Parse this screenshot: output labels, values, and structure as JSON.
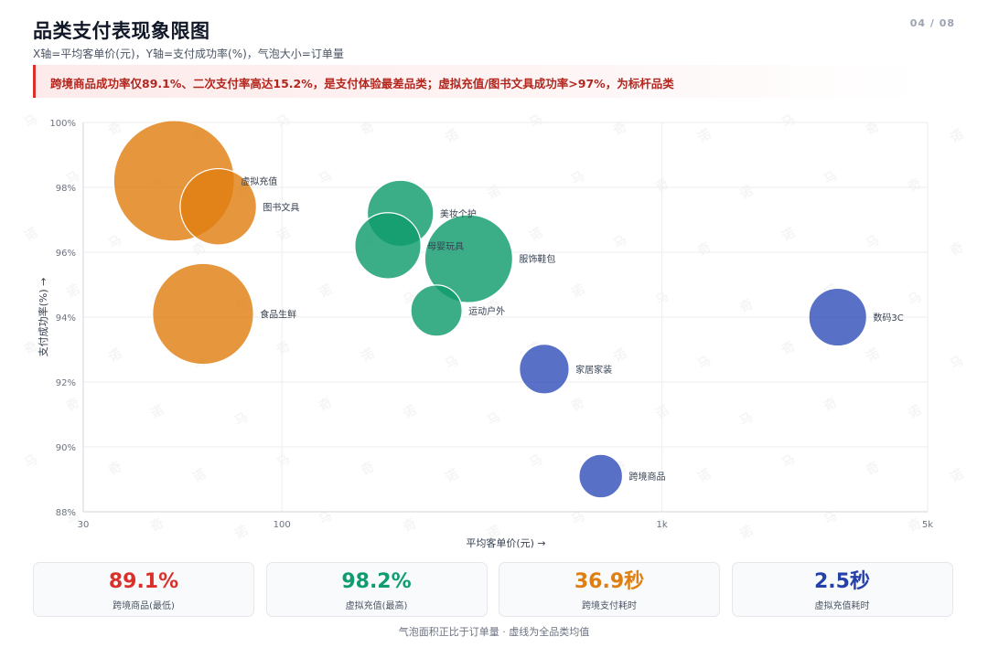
{
  "header": {
    "title": "品类支付表现象限图",
    "subtitle": "X轴=平均客单价(元)，Y轴=支付成功率(%)，气泡大小=订单量",
    "page_indicator": "04 / 08"
  },
  "insight": {
    "text": "跨境商品成功率仅89.1%、二次支付率高达15.2%，是支付体验最差品类；虚拟充值/图书文具成功率>97%，为标杆品类",
    "color": "#d9302b"
  },
  "watermark": {
    "glyphs": [
      "马",
      "奇",
      "诺"
    ]
  },
  "chart_data": {
    "type": "scatter",
    "xlabel": "平均客单价(元) →",
    "ylabel": "支付成功率(%) →",
    "x_scale": "log",
    "xlim": [
      30,
      5000
    ],
    "ylim": [
      88,
      100
    ],
    "x_ticks": [
      {
        "value": 30,
        "label": "30"
      },
      {
        "value": 100,
        "label": "100"
      },
      {
        "value": 1000,
        "label": "1k"
      },
      {
        "value": 5000,
        "label": "5k"
      }
    ],
    "y_ticks": [
      {
        "value": 88,
        "label": "88%"
      },
      {
        "value": 90,
        "label": "90%"
      },
      {
        "value": 92,
        "label": "92%"
      },
      {
        "value": 94,
        "label": "94%"
      },
      {
        "value": 96,
        "label": "96%"
      },
      {
        "value": 98,
        "label": "98%"
      },
      {
        "value": 100,
        "label": "100%"
      }
    ],
    "grid": true,
    "size_encoding": "order_volume_relative",
    "colors": {
      "low_price": "#e07f11",
      "mid_price": "#109c6e",
      "high_price": "#3451bb"
    },
    "points": [
      {
        "name": "虚拟充值",
        "x": 52,
        "y": 98.2,
        "size": 1.0,
        "group": "low_price"
      },
      {
        "name": "图书文具",
        "x": 68,
        "y": 97.4,
        "size": 0.4,
        "group": "low_price"
      },
      {
        "name": "食品生鲜",
        "x": 62,
        "y": 94.1,
        "size": 0.7,
        "group": "low_price"
      },
      {
        "name": "服饰鞋包",
        "x": 310,
        "y": 95.8,
        "size": 0.53,
        "group": "mid_price"
      },
      {
        "name": "美妆个护",
        "x": 205,
        "y": 97.2,
        "size": 0.3,
        "group": "mid_price"
      },
      {
        "name": "母婴玩具",
        "x": 190,
        "y": 96.2,
        "size": 0.3,
        "group": "mid_price"
      },
      {
        "name": "运动户外",
        "x": 255,
        "y": 94.2,
        "size": 0.18,
        "group": "mid_price"
      },
      {
        "name": "数码3C",
        "x": 2900,
        "y": 94.0,
        "size": 0.23,
        "group": "high_price"
      },
      {
        "name": "家居家装",
        "x": 490,
        "y": 92.4,
        "size": 0.17,
        "group": "high_price"
      },
      {
        "name": "跨境商品",
        "x": 690,
        "y": 89.1,
        "size": 0.13,
        "group": "high_price"
      }
    ]
  },
  "kpis": [
    {
      "value": "89.1%",
      "label": "跨境商品(最低)",
      "color": "#d9302b"
    },
    {
      "value": "98.2%",
      "label": "虚拟充值(最高)",
      "color": "#109c6e"
    },
    {
      "value": "36.9秒",
      "label": "跨境支付耗时",
      "color": "#e07f11"
    },
    {
      "value": "2.5秒",
      "label": "虚拟充值耗时",
      "color": "#2541a8"
    }
  ],
  "footer": {
    "note": "气泡面积正比于订单量 · 虚线为全品类均值"
  }
}
